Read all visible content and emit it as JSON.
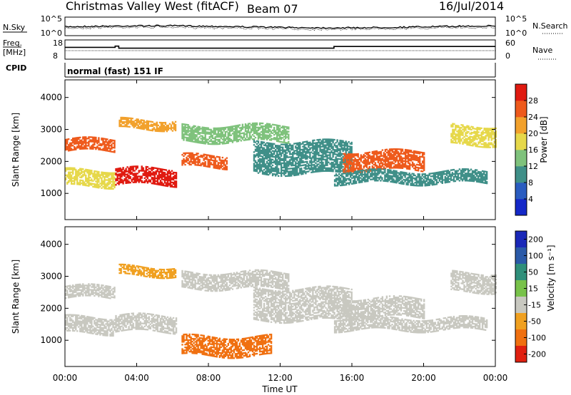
{
  "header": {
    "title": "Christmas Valley West (fitACF)",
    "beam": "Beam 07",
    "date": "16/Jul/2014"
  },
  "noise_panel": {
    "left_label": "N.Sky",
    "right_label": "N.Search",
    "left_ticks": [
      "10^5",
      "10^0"
    ],
    "right_ticks": [
      "10^5",
      "10^0"
    ]
  },
  "freq_panel": {
    "left_label_line1": "Freq.",
    "left_label_line2": "[MHz]",
    "left_ticks": [
      "18",
      "8"
    ],
    "right_ticks": [
      "60",
      "0"
    ],
    "right_label": "Nave",
    "freq_steps": [
      [
        0,
        14.5
      ],
      [
        2.8,
        15.2
      ],
      [
        3.0,
        14.0
      ],
      [
        15.0,
        15.0
      ],
      [
        24.0,
        15.0
      ]
    ]
  },
  "cpid_panel": {
    "label": "CPID",
    "mode_text": "normal (fast) 151 IF"
  },
  "chart_data": [
    {
      "type": "heatmap",
      "title": "Power",
      "ylabel": "Slant Range [km]",
      "xlabel": "Time UT",
      "ylim": [
        180,
        4550
      ],
      "xlim": [
        0,
        24
      ],
      "y_ticks": [
        "1000",
        "2000",
        "3000",
        "4000"
      ],
      "x_ticks": [
        "00:00",
        "04:00",
        "08:00",
        "12:00",
        "16:00",
        "20:00",
        "00:00"
      ],
      "colorbar_label": "Power [dB]",
      "colorbar_ticks": [
        "4",
        "8",
        "12",
        "16",
        "20",
        "24",
        "28"
      ],
      "colorbar_colors": [
        "#1428c8",
        "#2a5cc0",
        "#3f8f88",
        "#7fc27c",
        "#e6d84a",
        "#f2a12c",
        "#ee5a1c",
        "#e01a10"
      ],
      "echo_bands": [
        {
          "t_start": 0.0,
          "t_end": 2.8,
          "range_km": [
            2300,
            2700
          ],
          "power_db": 22
        },
        {
          "t_start": 0.0,
          "t_end": 2.8,
          "range_km": [
            1200,
            1700
          ],
          "power_db": 14
        },
        {
          "t_start": 2.8,
          "t_end": 6.2,
          "range_km": [
            1250,
            1750
          ],
          "power_db": 28
        },
        {
          "t_start": 3.0,
          "t_end": 6.2,
          "range_km": [
            3000,
            3300
          ],
          "power_db": 20
        },
        {
          "t_start": 6.5,
          "t_end": 9.0,
          "range_km": [
            1800,
            2200
          ],
          "power_db": 22
        },
        {
          "t_start": 6.5,
          "t_end": 12.5,
          "range_km": [
            2600,
            3100
          ],
          "power_db": 10
        },
        {
          "t_start": 10.5,
          "t_end": 16.0,
          "range_km": [
            1600,
            2600
          ],
          "power_db": 6
        },
        {
          "t_start": 15.5,
          "t_end": 20.0,
          "range_km": [
            1700,
            2300
          ],
          "power_db": 24
        },
        {
          "t_start": 15.0,
          "t_end": 23.5,
          "range_km": [
            1300,
            1700
          ],
          "power_db": 8
        },
        {
          "t_start": 21.5,
          "t_end": 24.0,
          "range_km": [
            2500,
            3100
          ],
          "power_db": 16
        }
      ]
    },
    {
      "type": "heatmap",
      "title": "Velocity",
      "ylabel": "Slant Range [km]",
      "xlabel": "Time UT",
      "ylim": [
        180,
        4550
      ],
      "xlim": [
        0,
        24
      ],
      "y_ticks": [
        "1000",
        "2000",
        "3000",
        "4000"
      ],
      "x_ticks": [
        "00:00",
        "04:00",
        "08:00",
        "12:00",
        "16:00",
        "20:00",
        "00:00"
      ],
      "colorbar_label": "Velocity [m s⁻¹]",
      "colorbar_ticks": [
        "200",
        "100",
        "50",
        "15",
        "-15",
        "-50",
        "-100",
        "-200"
      ],
      "colorbar_colors": [
        "#1a28b8",
        "#2b5aa8",
        "#2f8f7a",
        "#78c24a",
        "#c8c8c0",
        "#f0a020",
        "#f07010",
        "#e02010"
      ],
      "echo_bands": [
        {
          "t_start": 0.0,
          "t_end": 2.8,
          "range_km": [
            2300,
            2700
          ],
          "velocity": 0
        },
        {
          "t_start": 0.0,
          "t_end": 2.8,
          "range_km": [
            1200,
            1700
          ],
          "velocity": 0
        },
        {
          "t_start": 2.8,
          "t_end": 6.2,
          "range_km": [
            1250,
            1750
          ],
          "velocity": 0
        },
        {
          "t_start": 3.0,
          "t_end": 6.2,
          "range_km": [
            3000,
            3300
          ],
          "velocity": -30
        },
        {
          "t_start": 6.5,
          "t_end": 11.5,
          "range_km": [
            500,
            1100
          ],
          "velocity": -60
        },
        {
          "t_start": 6.5,
          "t_end": 12.5,
          "range_km": [
            2600,
            3100
          ],
          "velocity": 0
        },
        {
          "t_start": 10.5,
          "t_end": 16.0,
          "range_km": [
            1600,
            2600
          ],
          "velocity": 0
        },
        {
          "t_start": 15.5,
          "t_end": 20.0,
          "range_km": [
            1700,
            2300
          ],
          "velocity": 0
        },
        {
          "t_start": 15.0,
          "t_end": 23.5,
          "range_km": [
            1300,
            1700
          ],
          "velocity": 0
        },
        {
          "t_start": 21.5,
          "t_end": 24.0,
          "range_km": [
            2500,
            3100
          ],
          "velocity": 0
        }
      ]
    }
  ]
}
